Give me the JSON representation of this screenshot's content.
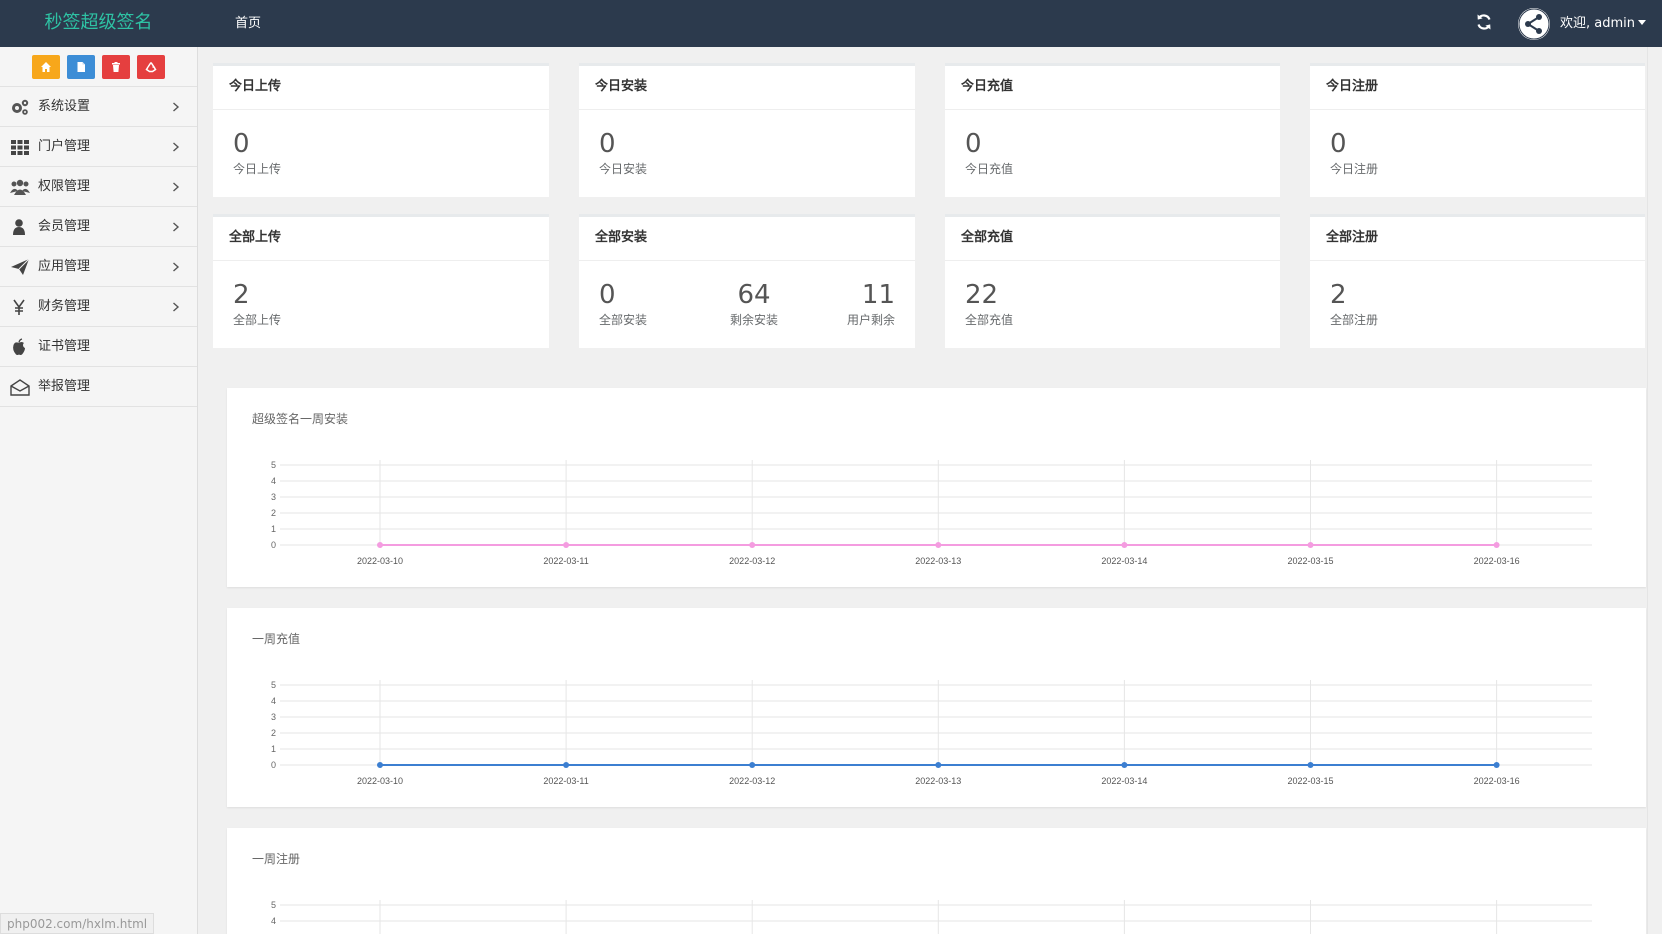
{
  "header": {
    "brand": "秒签超级签名",
    "nav_home": "首页",
    "welcome": "欢迎, admin",
    "refresh_icon": "refresh-icon",
    "avatar_icon": "share-network-icon"
  },
  "sidebar": {
    "quick_buttons": [
      {
        "name": "home-icon",
        "color": "#f7a71b"
      },
      {
        "name": "file-icon",
        "color": "#3c8dd6"
      },
      {
        "name": "trash-icon",
        "color": "#e53f3f"
      },
      {
        "name": "recycle-icon",
        "color": "#e53f3f"
      }
    ],
    "items": [
      {
        "label": "系统设置",
        "icon": "gears-icon"
      },
      {
        "label": "门户管理",
        "icon": "grid-icon"
      },
      {
        "label": "权限管理",
        "icon": "users-icon"
      },
      {
        "label": "会员管理",
        "icon": "user-icon"
      },
      {
        "label": "应用管理",
        "icon": "paper-plane-icon"
      },
      {
        "label": "财务管理",
        "icon": "yen-icon"
      },
      {
        "label": "证书管理",
        "icon": "apple-icon"
      },
      {
        "label": "举报管理",
        "icon": "envelope-open-icon"
      }
    ],
    "url_hint": "php002.com/hxlm.html"
  },
  "stats": {
    "today_upload": {
      "title": "今日上传",
      "value": "0",
      "label": "今日上传"
    },
    "today_install": {
      "title": "今日安装",
      "value": "0",
      "label": "今日安装"
    },
    "today_recharge": {
      "title": "今日充值",
      "value": "0",
      "label": "今日充值"
    },
    "today_register": {
      "title": "今日注册",
      "value": "0",
      "label": "今日注册"
    },
    "all_upload": {
      "title": "全部上传",
      "value": "2",
      "label": "全部上传"
    },
    "all_install": {
      "title": "全部安装",
      "value": "0",
      "label": "全部安装",
      "value2": "64",
      "label2": "剩余安装",
      "value3": "11",
      "label3": "用户剩余"
    },
    "all_recharge": {
      "title": "全部充值",
      "value": "22",
      "label": "全部充值"
    },
    "all_register": {
      "title": "全部注册",
      "value": "2",
      "label": "全部注册"
    }
  },
  "panels": {
    "install_title": "超级签名一周安装",
    "recharge_title": "一周充值",
    "register_title": "一周注册"
  },
  "chart_data": [
    {
      "type": "line",
      "title": "超级签名一周安装",
      "x": [
        "2022-03-10",
        "2022-03-11",
        "2022-03-12",
        "2022-03-13",
        "2022-03-14",
        "2022-03-15",
        "2022-03-16"
      ],
      "series": [
        {
          "values": [
            0,
            0,
            0,
            0,
            0,
            0,
            0
          ]
        }
      ],
      "ylim": [
        0,
        5
      ],
      "yticks": [
        "0",
        "1",
        "2",
        "3",
        "4",
        "5"
      ],
      "color": "#f49ce0",
      "grid": true
    },
    {
      "type": "line",
      "title": "一周充值",
      "x": [
        "2022-03-10",
        "2022-03-11",
        "2022-03-12",
        "2022-03-13",
        "2022-03-14",
        "2022-03-15",
        "2022-03-16"
      ],
      "series": [
        {
          "values": [
            0,
            0,
            0,
            0,
            0,
            0,
            0
          ]
        }
      ],
      "ylim": [
        0,
        5
      ],
      "yticks": [
        "0",
        "1",
        "2",
        "3",
        "4",
        "5"
      ],
      "color": "#3c7fd1",
      "grid": true
    },
    {
      "type": "line",
      "title": "一周注册",
      "yticks": [
        "4",
        "5"
      ],
      "grid": true
    }
  ]
}
